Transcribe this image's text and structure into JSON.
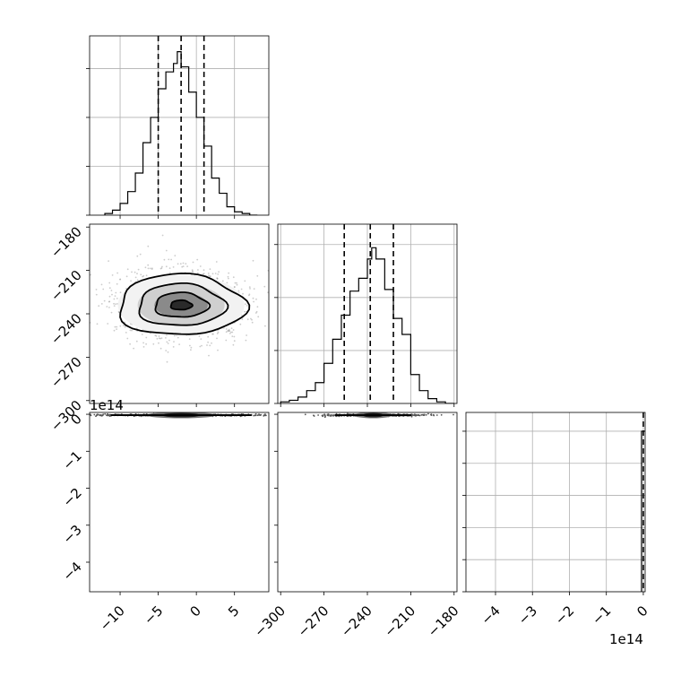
{
  "chart_data": {
    "type": "corner",
    "offset_labels": {
      "row3_y": "1e14",
      "col3_x": "1e14"
    },
    "parameters": [
      {
        "id": "p1",
        "range": [
          -14,
          9.5
        ],
        "ticks": [
          -10,
          -5,
          0,
          5
        ],
        "tick_labels": [
          "−10",
          "−5",
          "0",
          "5"
        ],
        "quantiles": [
          -5.0,
          -2.0,
          1.0
        ],
        "hist": {
          "bin_edges": [
            -12,
            -11,
            -10,
            -9,
            -8,
            -7,
            -6,
            -5,
            -4,
            -3,
            -2.5,
            -2,
            -1,
            0,
            1,
            2,
            3,
            4,
            5,
            6,
            7,
            8
          ],
          "counts": [
            0.01,
            0.03,
            0.07,
            0.14,
            0.25,
            0.43,
            0.58,
            0.75,
            0.85,
            0.9,
            0.97,
            0.88,
            0.73,
            0.58,
            0.41,
            0.22,
            0.13,
            0.05,
            0.02,
            0.01,
            0.0
          ]
        },
        "hist_yticks": [
          0.0,
          0.29,
          0.58,
          0.87
        ],
        "hist_ymax": 1.0
      },
      {
        "id": "p2",
        "range": [
          -302,
          -178
        ],
        "ticks": [
          -300,
          -270,
          -240,
          -210,
          -180
        ],
        "tick_labels": [
          "−300",
          "−270",
          "−240",
          "−210",
          "−180"
        ],
        "quantiles": [
          -256.0,
          -238.0,
          -222.0
        ],
        "hist": {
          "bin_edges": [
            -300,
            -294,
            -288,
            -282,
            -276,
            -270,
            -264,
            -258,
            -252,
            -246,
            -240,
            -237,
            -234,
            -228,
            -222,
            -216,
            -210,
            -204,
            -198,
            -192,
            -186,
            -180
          ],
          "counts": [
            0.01,
            0.02,
            0.04,
            0.08,
            0.13,
            0.25,
            0.4,
            0.55,
            0.7,
            0.78,
            0.9,
            0.97,
            0.9,
            0.71,
            0.53,
            0.43,
            0.18,
            0.08,
            0.03,
            0.01,
            0.0
          ]
        },
        "hist_yticks": [
          0.0,
          0.33,
          0.66,
          0.99
        ],
        "hist_ymax": 1.05
      },
      {
        "id": "p3",
        "range": [
          -4.8,
          0.05
        ],
        "ticks": [
          -4,
          -3,
          -2,
          -1,
          0
        ],
        "tick_labels": [
          "−4",
          "−3",
          "−2",
          "−1",
          "0"
        ],
        "quantiles": [
          0.0
        ],
        "hist_yticks": [
          0.0,
          0.2,
          0.4,
          0.6,
          0.8,
          1.0
        ],
        "hist_ymax": 1.05,
        "spike_height": 1.0
      }
    ],
    "panels_2d": [
      {
        "id": "p1_vs_p2",
        "x_param": "p1",
        "y_param": "p2",
        "center": [
          -2.0,
          -234.0
        ],
        "contour_radii": [
          [
            1.4,
            3.3
          ],
          [
            3.5,
            8.5
          ],
          [
            5.7,
            14.5
          ],
          [
            8.3,
            21.0
          ]
        ],
        "scatter_spread": [
          4.2,
          12.0
        ]
      },
      {
        "id": "p1_vs_p3",
        "x_param": "p1",
        "y_param": "p3",
        "center": [
          -2.0,
          0.0
        ]
      },
      {
        "id": "p2_vs_p3",
        "x_param": "p2",
        "y_param": "p3",
        "center": [
          -236.0,
          0.0
        ]
      }
    ],
    "grid": true
  }
}
